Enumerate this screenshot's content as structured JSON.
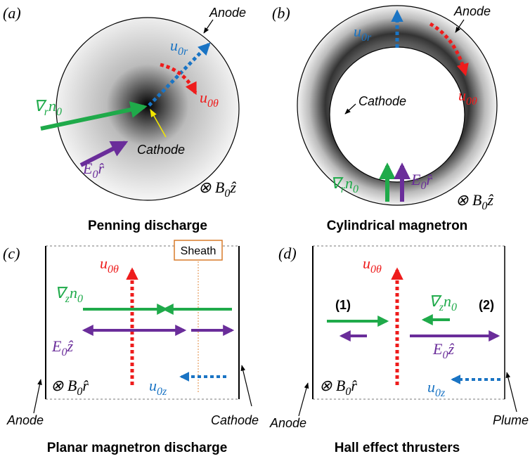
{
  "panels": [
    {
      "label": "(a)",
      "title": "Penning discharge",
      "anode": "Anode",
      "cathode": "Cathode",
      "velocity_r": [
        "u",
        "0r"
      ],
      "velocity_theta": [
        "u",
        "0θ"
      ],
      "gradient": [
        "∇",
        "r",
        "n",
        "0"
      ],
      "field": [
        "E",
        "0",
        "r̂"
      ],
      "magnetic": [
        "⊗ B",
        "0",
        "ẑ"
      ]
    },
    {
      "label": "(b)",
      "title": "Cylindrical magnetron",
      "anode": "Anode",
      "cathode": "Cathode",
      "velocity_r": [
        "u",
        "0r"
      ],
      "velocity_theta": [
        "u",
        "0θ"
      ],
      "gradient": [
        "∇",
        "r",
        "n",
        "0"
      ],
      "field": [
        "E",
        "0",
        "r̂"
      ],
      "magnetic": [
        "⊗ B",
        "0",
        "ẑ"
      ]
    },
    {
      "label": "(c)",
      "title": "Planar magnetron discharge",
      "anode": "Anode",
      "cathode": "Cathode",
      "sheath": "Sheath",
      "velocity_theta": [
        "u",
        "0θ"
      ],
      "velocity_z": [
        "u",
        "0z"
      ],
      "gradient": [
        "∇",
        "z",
        "n",
        "0"
      ],
      "field": [
        "E",
        "0",
        "ẑ"
      ],
      "magnetic": [
        "⊗ B",
        "0",
        "r̂"
      ]
    },
    {
      "label": "(d)",
      "title": "Hall effect thrusters",
      "anode": "Anode",
      "plume": "Plume",
      "region_1": "(1)",
      "region_2": "(2)",
      "velocity_theta": [
        "u",
        "0θ"
      ],
      "velocity_z": [
        "u",
        "0z"
      ],
      "gradient": [
        "∇",
        "z",
        "n",
        "0"
      ],
      "field": [
        "E",
        "0",
        "ẑ"
      ],
      "magnetic": [
        "⊗ B",
        "0",
        "r̂"
      ]
    }
  ]
}
